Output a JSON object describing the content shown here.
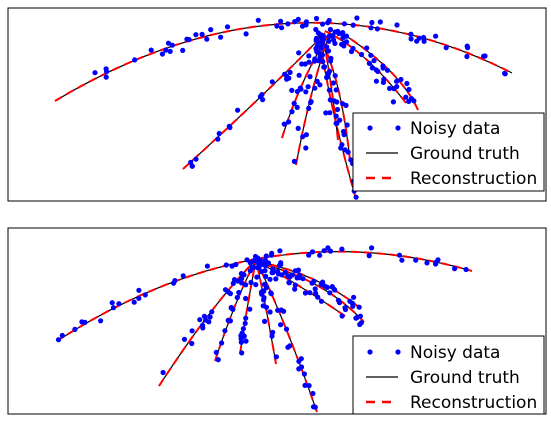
{
  "chart_data": [
    {
      "type": "scatter",
      "title": "",
      "xlabel": "",
      "ylabel": "",
      "axes_ticks": false,
      "legend": {
        "placement": "bottom-right",
        "entries": [
          {
            "label": "Noisy data",
            "marker": "dot",
            "color": "#0000ff"
          },
          {
            "label": "Ground truth",
            "line": "solid",
            "color": "#000000"
          },
          {
            "label": "Reconstruction",
            "line": "dashed",
            "color": "#ff0000"
          }
        ]
      },
      "series": [
        {
          "name": "Noisy data",
          "kind": "points",
          "color": "#0000ff"
        },
        {
          "name": "Ground truth",
          "kind": "line",
          "color": "#000000"
        },
        {
          "name": "Reconstruction",
          "kind": "dashed-line",
          "color": "#ff0000"
        }
      ],
      "noise_level": "high"
    },
    {
      "type": "scatter",
      "title": "",
      "xlabel": "",
      "ylabel": "",
      "axes_ticks": false,
      "legend": {
        "placement": "bottom-right",
        "entries": [
          {
            "label": "Noisy data",
            "marker": "dot",
            "color": "#0000ff"
          },
          {
            "label": "Ground truth",
            "line": "solid",
            "color": "#000000"
          },
          {
            "label": "Reconstruction",
            "line": "dashed",
            "color": "#ff0000"
          }
        ]
      },
      "series": [
        {
          "name": "Noisy data",
          "kind": "points",
          "color": "#0000ff"
        },
        {
          "name": "Ground truth",
          "kind": "line",
          "color": "#000000"
        },
        {
          "name": "Reconstruction",
          "kind": "dashed-line",
          "color": "#ff0000"
        }
      ],
      "noise_level": "low"
    }
  ]
}
